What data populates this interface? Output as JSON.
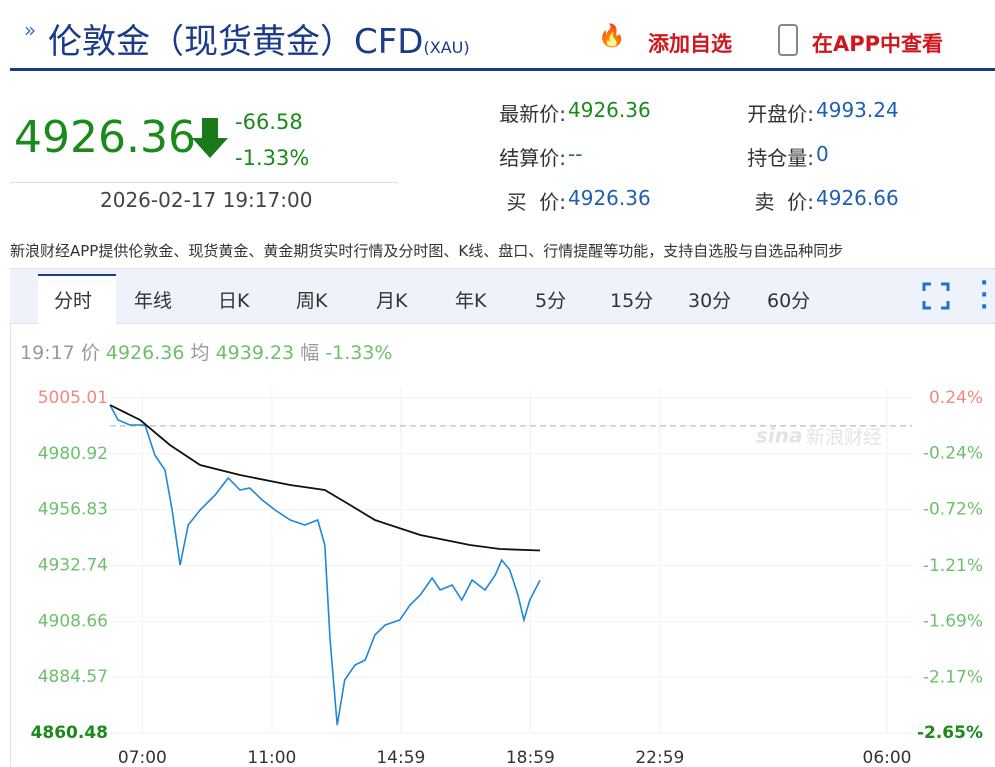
{
  "header": {
    "title": "伦敦金（现货黄金）CFD",
    "code": "(XAU)",
    "actions": [
      "添加自选",
      "在APP中查看"
    ]
  },
  "quote": {
    "price": "4926.36",
    "change": "-66.58",
    "change_pct": "-1.33%",
    "time": "2026-02-17 19:17:00"
  },
  "info": [
    {
      "label": "最新价:",
      "value": "4926.36"
    },
    {
      "label": "开盘价:",
      "value": "4993.24"
    },
    {
      "label": "结算价:",
      "value": "--"
    },
    {
      "label": "持仓量:",
      "value": "0"
    },
    {
      "label": "买  价:",
      "value": "4926.36"
    },
    {
      "label": "卖  价:",
      "value": "4926.66"
    }
  ],
  "notice": "新浪财经APP提供伦敦金、现货黄金、黄金期货实时行情及分时图、K线、盘口、行情提醒等功能，支持自选股与自选品种同步",
  "tabs": [
    "分时",
    "年线",
    "日K",
    "周K",
    "月K",
    "年K",
    "5分",
    "15分",
    "30分",
    "60分"
  ],
  "status": {
    "time": "19:17",
    "price_label": "价",
    "price": "4926.36",
    "avg_label": "均",
    "avg": "4939.23",
    "pct_label": "幅",
    "pct": "-1.33%"
  },
  "watermark": "新浪财经",
  "chart_data": {
    "type": "line",
    "x": [
      0,
      15,
      37,
      65,
      83,
      102,
      115,
      130,
      145,
      167,
      195,
      219,
      241,
      259,
      282,
      306,
      334,
      361,
      385,
      398,
      408,
      421,
      435,
      454,
      473,
      491,
      510,
      537,
      556,
      575,
      597,
      612,
      634,
      652,
      671,
      695,
      714,
      726,
      741,
      756,
      767,
      778,
      797
    ],
    "series": [
      {
        "name": "价",
        "color": "#1e88d8",
        "values": [
          5001.99,
          4995.52,
          4993.36,
          4993.36,
          4980.42,
          4973.95,
          4956.69,
          4932.97,
          4950.22,
          4956.69,
          4963.16,
          4970.5,
          4965.32,
          4966.18,
          4961.01,
          4956.69,
          4952.38,
          4950.22,
          4952.38,
          4941.6,
          4900.61,
          4863.94,
          4883.35,
          4889.83,
          4891.99,
          4902.77,
          4907.09,
          4909.24,
          4915.71,
          4920.03,
          4927.36,
          4922.18,
          4924.34,
          4917.87,
          4926.5,
          4922.18,
          4928.65,
          4935.12,
          4930.81,
          4920.03,
          4909.24,
          4917.87,
          4926.36
        ]
      },
      {
        "name": "均",
        "color": "#111111",
        "x": [
          0,
          56,
          111,
          167,
          241,
          334,
          398,
          445,
          491,
          575,
          667,
          723,
          797
        ],
        "values": [
          5001.99,
          4995.52,
          4984.73,
          4976.1,
          4971.79,
          4967.48,
          4965.32,
          4958.85,
          4952.38,
          4945.91,
          4941.6,
          4939.87,
          4939.23
        ]
      }
    ],
    "xlim": [
      0,
      1440
    ],
    "xticks": [
      {
        "value": 60,
        "label": "07:00"
      },
      {
        "value": 300,
        "label": "11:00"
      },
      {
        "value": 539,
        "label": "14:59"
      },
      {
        "value": 779,
        "label": "18:59"
      },
      {
        "value": 1019,
        "label": "22:59"
      },
      {
        "value": 1440,
        "label": "06:00"
      }
    ],
    "ylim": [
      4860.48,
      5005.01
    ],
    "yticks": [
      4860.48,
      4884.57,
      4908.66,
      4932.74,
      4956.83,
      4980.92,
      5005.01
    ],
    "y2lim": [
      -2.65,
      0.24
    ],
    "y2ticks": [
      {
        "value": -2.65,
        "label": "-2.65%"
      },
      {
        "value": -2.17,
        "label": "-2.17%"
      },
      {
        "value": -1.69,
        "label": "-1.69%"
      },
      {
        "value": -1.21,
        "label": "-1.21%"
      },
      {
        "value": -0.72,
        "label": "-0.72%"
      },
      {
        "value": -0.24,
        "label": "-0.24%"
      },
      {
        "value": 0.24,
        "label": "0.24%"
      }
    ],
    "grid": true
  }
}
